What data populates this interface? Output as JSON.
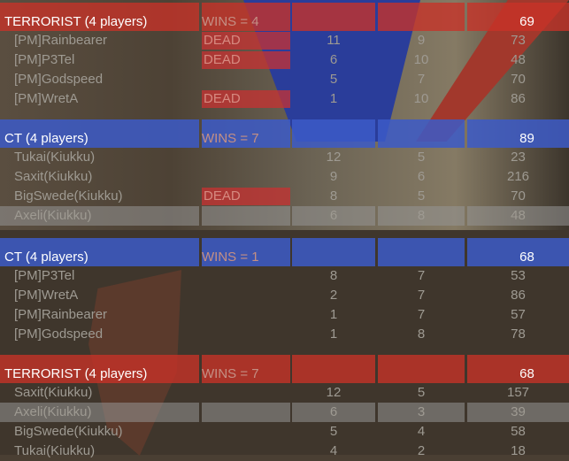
{
  "colors": {
    "terrorist": "#c83228",
    "ct": "#3c5ac8",
    "self_highlight": "#969696"
  },
  "scoreboards": [
    {
      "teams": [
        {
          "side": "t",
          "name": "TERRORIST (4 players)",
          "wins": "WINS = 4",
          "ping": "69",
          "players": [
            {
              "name": "[PM]Rainbearer",
              "status": "DEAD",
              "kills": "11",
              "deaths": "9",
              "ping": "73"
            },
            {
              "name": "[PM]P3Tel",
              "status": "DEAD",
              "kills": "6",
              "deaths": "10",
              "ping": "48"
            },
            {
              "name": "[PM]Godspeed",
              "status": "",
              "kills": "5",
              "deaths": "7",
              "ping": "70"
            },
            {
              "name": "[PM]WretA",
              "status": "DEAD",
              "kills": "1",
              "deaths": "10",
              "ping": "86"
            }
          ]
        },
        {
          "side": "ct",
          "name": "CT (4 players)",
          "wins": "WINS = 7",
          "ping": "89",
          "players": [
            {
              "name": "Tukai(Kiukku)",
              "status": "",
              "kills": "12",
              "deaths": "5",
              "ping": "23"
            },
            {
              "name": "Saxit(Kiukku)",
              "status": "",
              "kills": "9",
              "deaths": "6",
              "ping": "216"
            },
            {
              "name": "BigSwede(Kiukku)",
              "status": "DEAD",
              "kills": "8",
              "deaths": "5",
              "ping": "70"
            },
            {
              "name": "Axeli(Kiukku)",
              "status": "",
              "kills": "6",
              "deaths": "8",
              "ping": "48",
              "self": true
            }
          ]
        }
      ]
    },
    {
      "teams": [
        {
          "side": "ct",
          "name": "CT (4 players)",
          "wins": "WINS = 1",
          "ping": "68",
          "players": [
            {
              "name": "[PM]P3Tel",
              "status": "",
              "kills": "8",
              "deaths": "7",
              "ping": "53"
            },
            {
              "name": "[PM]WretA",
              "status": "",
              "kills": "2",
              "deaths": "7",
              "ping": "86"
            },
            {
              "name": "[PM]Rainbearer",
              "status": "",
              "kills": "1",
              "deaths": "7",
              "ping": "57"
            },
            {
              "name": "[PM]Godspeed",
              "status": "",
              "kills": "1",
              "deaths": "8",
              "ping": "78"
            }
          ]
        },
        {
          "side": "t",
          "name": "TERRORIST (4 players)",
          "wins": "WINS = 7",
          "ping": "68",
          "players": [
            {
              "name": "Saxit(Kiukku)",
              "status": "",
              "kills": "12",
              "deaths": "5",
              "ping": "157"
            },
            {
              "name": "Axeli(Kiukku)",
              "status": "",
              "kills": "6",
              "deaths": "3",
              "ping": "39",
              "self": true
            },
            {
              "name": "BigSwede(Kiukku)",
              "status": "",
              "kills": "5",
              "deaths": "4",
              "ping": "58"
            },
            {
              "name": "Tukai(Kiukku)",
              "status": "",
              "kills": "4",
              "deaths": "2",
              "ping": "18"
            }
          ]
        }
      ]
    }
  ]
}
